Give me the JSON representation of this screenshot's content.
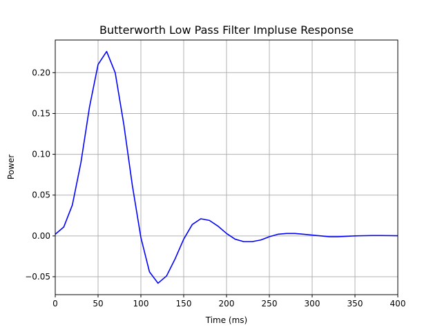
{
  "chart_data": {
    "type": "line",
    "title": "Butterworth Low Pass Filter Impluse Response",
    "xlabel": "Time (ms)",
    "ylabel": "Power",
    "xlim": [
      0,
      400
    ],
    "ylim": [
      -0.072,
      0.24
    ],
    "xticks": [
      0,
      50,
      100,
      150,
      200,
      250,
      300,
      350,
      400
    ],
    "yticks": [
      -0.05,
      0.0,
      0.05,
      0.1,
      0.15,
      0.2
    ],
    "ytick_labels": [
      "−0.05",
      "0.00",
      "0.05",
      "0.10",
      "0.15",
      "0.20"
    ],
    "grid": true,
    "series": [
      {
        "color": "#0000ff",
        "x": [
          0,
          10,
          20,
          30,
          40,
          50,
          60,
          70,
          80,
          90,
          100,
          110,
          120,
          130,
          140,
          150,
          160,
          170,
          180,
          190,
          200,
          210,
          220,
          230,
          240,
          250,
          260,
          270,
          280,
          290,
          300,
          310,
          320,
          330,
          340,
          350,
          360,
          370,
          380,
          390,
          400
        ],
        "y": [
          0.002,
          0.011,
          0.038,
          0.09,
          0.158,
          0.21,
          0.226,
          0.2,
          0.137,
          0.062,
          -0.002,
          -0.044,
          -0.058,
          -0.049,
          -0.028,
          -0.004,
          0.014,
          0.021,
          0.019,
          0.012,
          0.003,
          -0.004,
          -0.007,
          -0.007,
          -0.005,
          -0.001,
          0.002,
          0.003,
          0.003,
          0.002,
          0.001,
          0.0,
          -0.001,
          -0.001,
          -0.0005,
          0.0,
          0.0003,
          0.0005,
          0.0005,
          0.0004,
          0.0002
        ]
      }
    ]
  }
}
